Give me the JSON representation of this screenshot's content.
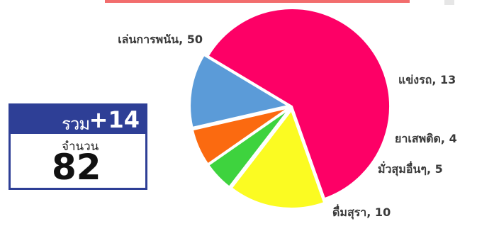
{
  "chart_data": {
    "type": "pie",
    "slices": [
      {
        "label": "เล่นการพนัน, 50",
        "value": 50,
        "color": "#fd0066"
      },
      {
        "label": "แข่งรถ, 13",
        "value": 13,
        "color": "#fbfb22"
      },
      {
        "label": "ยาเสพติด, 4",
        "value": 4,
        "color": "#3ed33e"
      },
      {
        "label": "มั่วสุมอื่นๆ, 5",
        "value": 5,
        "color": "#fb6a10"
      },
      {
        "label": "ดื่มสุรา, 10",
        "value": 10,
        "color": "#5b9bd8"
      }
    ]
  },
  "summary": {
    "total_label": "รวม",
    "total_delta": "+14",
    "count_label": "จำนวน",
    "count_value": "82"
  },
  "colors": {
    "card_border": "#2e3f96",
    "top_bar": "#f26d6d"
  }
}
